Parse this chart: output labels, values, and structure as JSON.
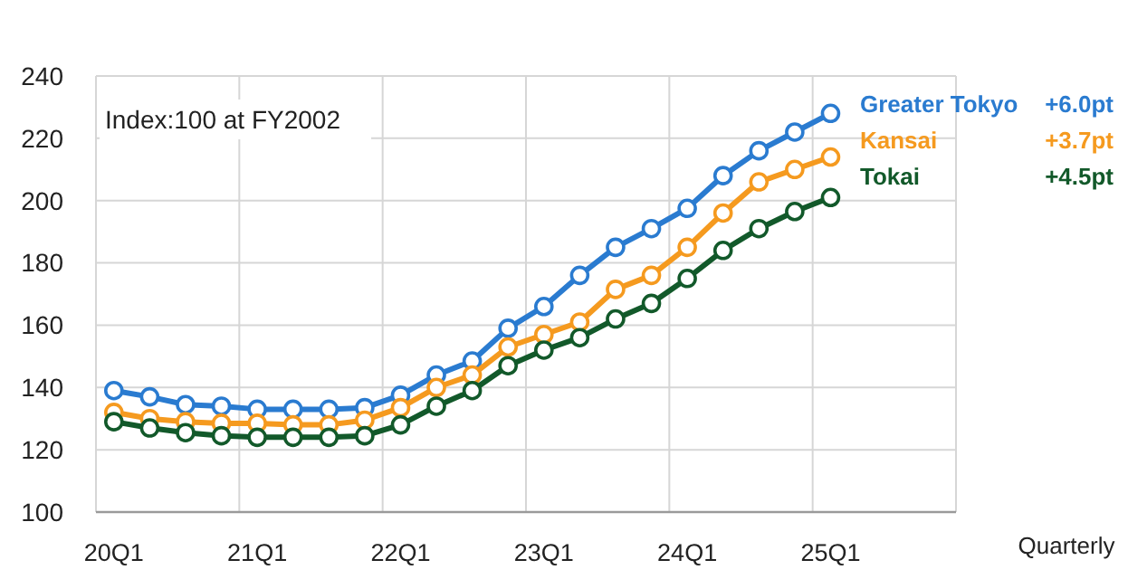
{
  "chart_data": {
    "type": "line",
    "xlabel": "Quarterly",
    "categories": [
      "20Q1",
      null,
      null,
      null,
      "21Q1",
      null,
      null,
      null,
      "22Q1",
      null,
      null,
      null,
      "23Q1",
      null,
      null,
      null,
      "24Q1",
      null,
      null,
      null,
      "25Q1",
      null,
      null,
      null
    ],
    "series": [
      {
        "name": "Greater Tokyo",
        "color": "#2a7bd0",
        "values": [
          139,
          137,
          134.5,
          134,
          133,
          133,
          133,
          133.5,
          137.5,
          144,
          148.5,
          159,
          166,
          176,
          185,
          191,
          197.5,
          208,
          216,
          222,
          228,
          null,
          null,
          null
        ]
      },
      {
        "name": "Kansai",
        "color": "#f59a1f",
        "values": [
          132,
          130,
          129,
          128.5,
          128.5,
          128,
          128,
          129.5,
          133.5,
          140,
          144,
          153,
          157,
          161,
          171.5,
          176,
          185,
          196,
          206,
          210,
          214,
          null,
          null,
          null
        ]
      },
      {
        "name": "Tokai",
        "color": "#12592a",
        "values": [
          129,
          127,
          125.5,
          124.5,
          124,
          124,
          124,
          124.5,
          128,
          134,
          139,
          147,
          152,
          156,
          162,
          167,
          175,
          184,
          191,
          196.5,
          201,
          null,
          null,
          null
        ]
      }
    ],
    "annotations": [
      "Index:100 at FY2002",
      "+6.0pt",
      "+3.7pt",
      "+4.5pt"
    ],
    "ylim": [
      100,
      240
    ],
    "yticks": [
      100,
      120,
      140,
      160,
      180,
      200,
      220,
      240
    ],
    "grid": true,
    "legend": "right",
    "marker": "circle",
    "line_style": "solid"
  }
}
